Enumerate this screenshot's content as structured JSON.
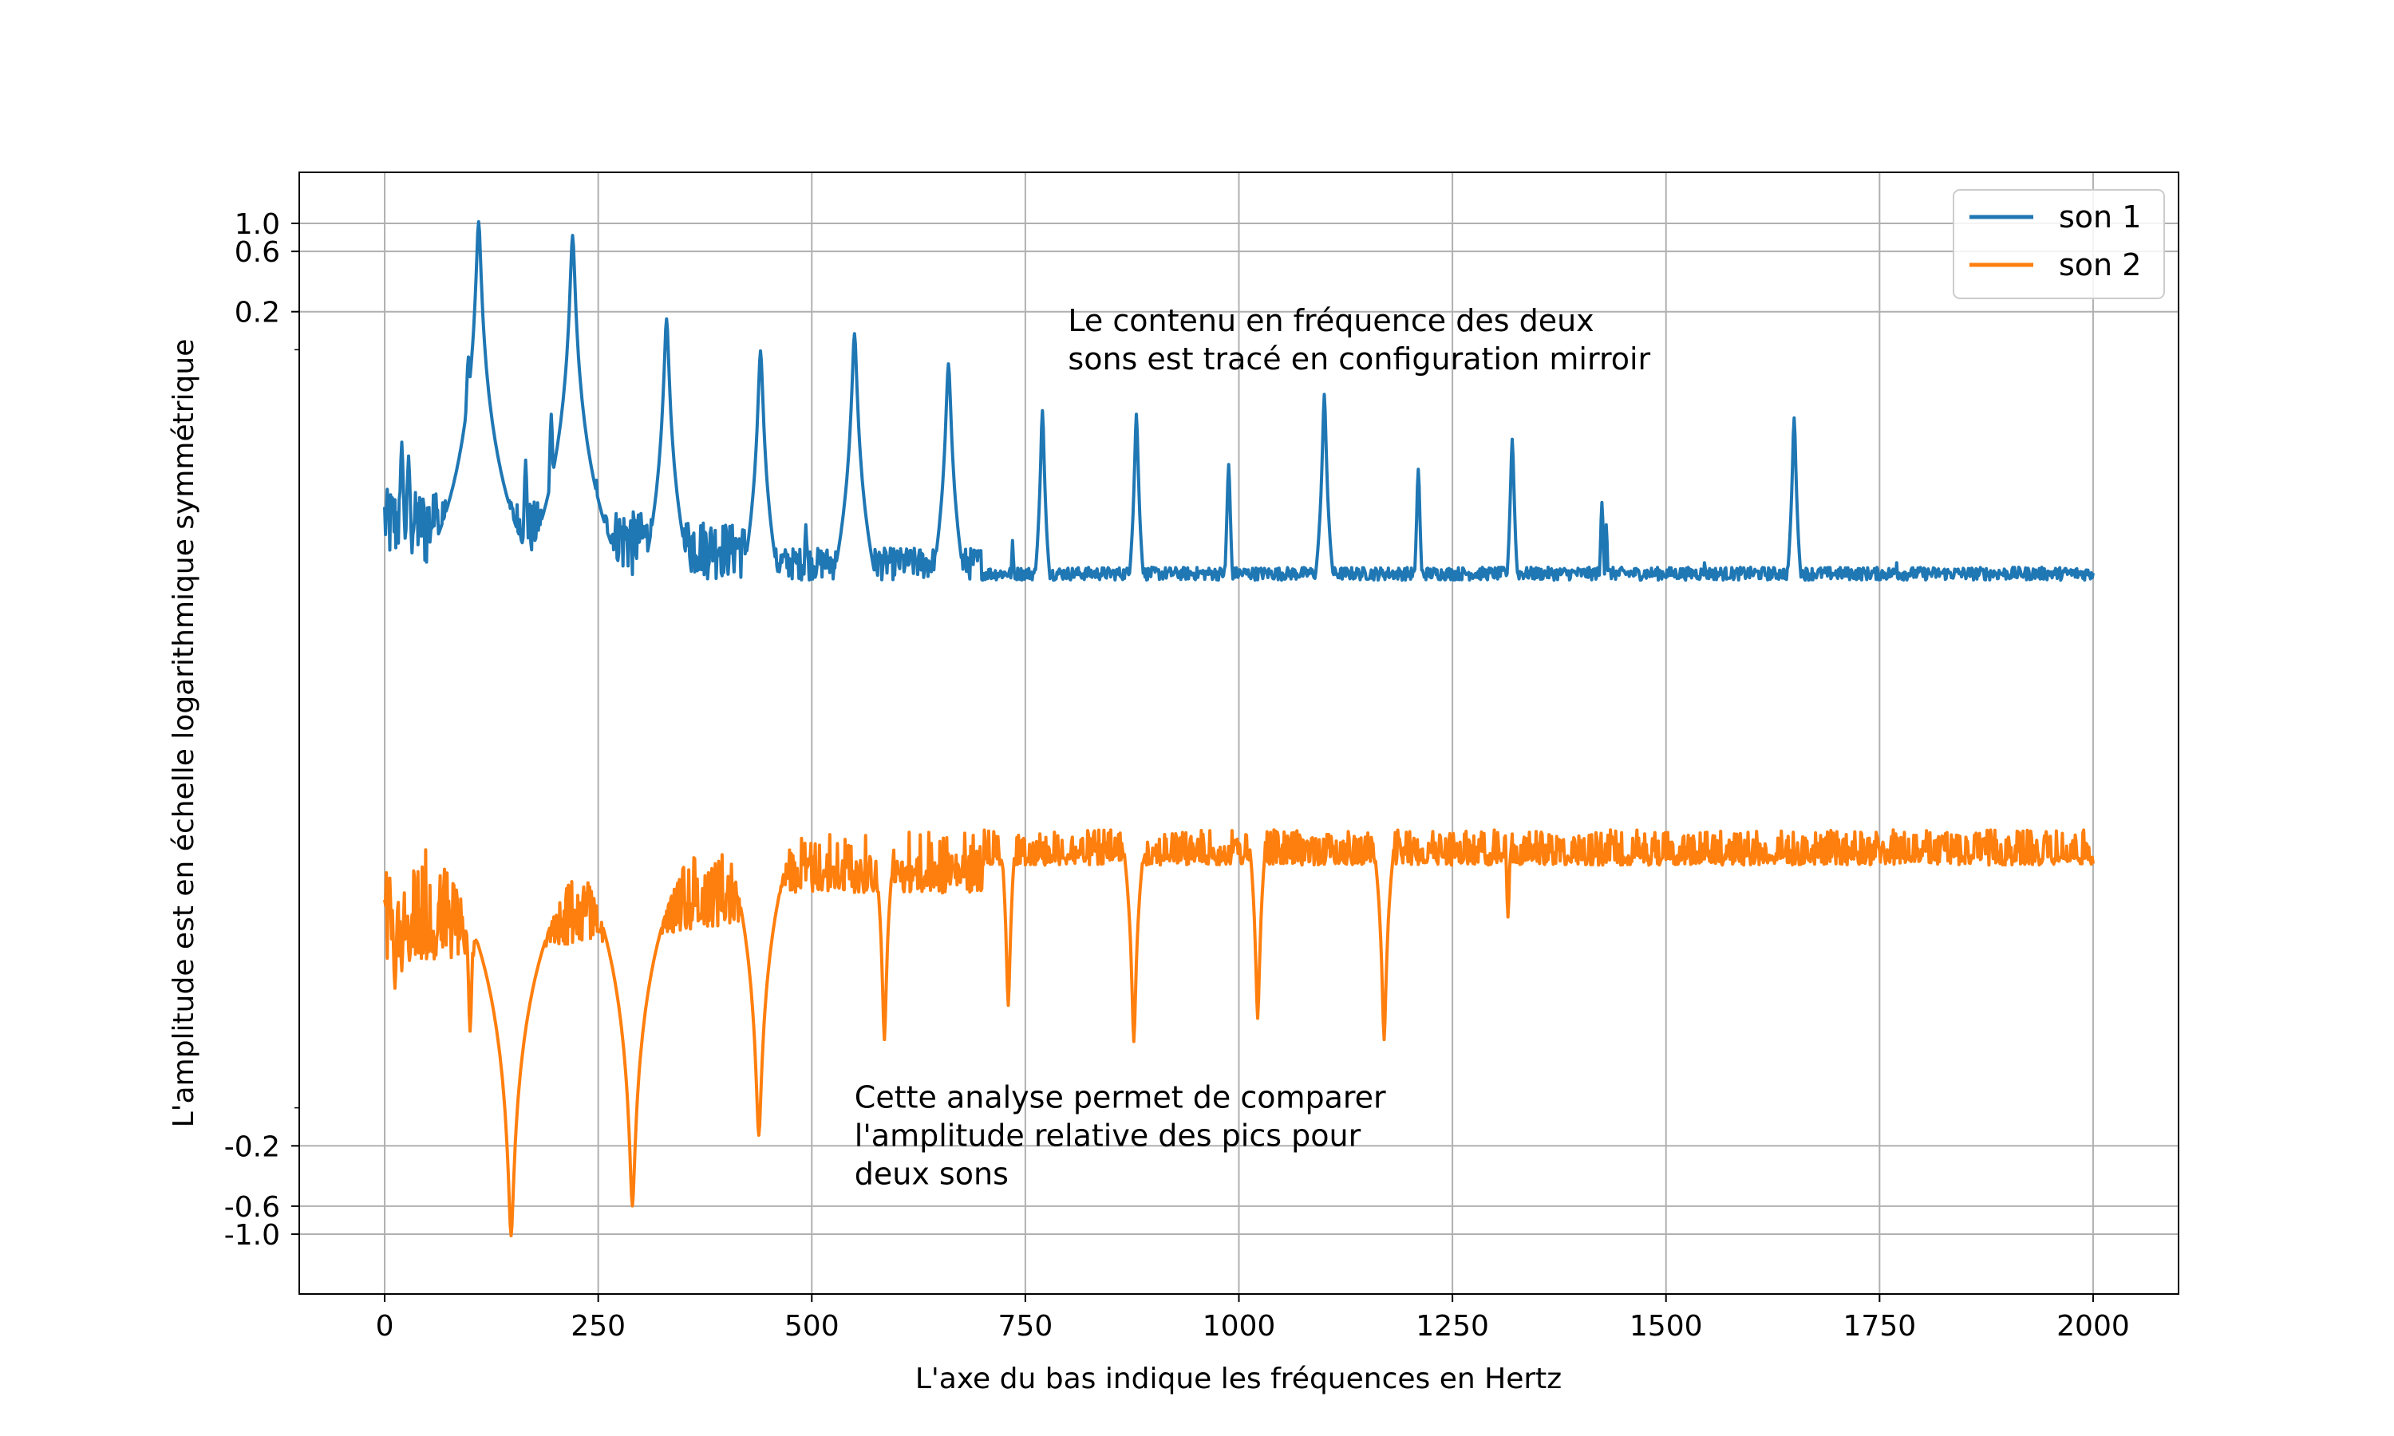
{
  "chart_data": {
    "type": "line",
    "title": "",
    "xlabel": "L'axe du bas indique les fréquences en Hertz",
    "ylabel": "L'amplitude est en échelle logarithmique symmétrique",
    "xlim": [
      -100,
      2100
    ],
    "ylim": [
      -1.0,
      1.0
    ],
    "y_scale": "symlog",
    "grid": true,
    "legend_position": "top-right",
    "x_ticks": [
      0,
      250,
      500,
      750,
      1000,
      1250,
      1500,
      1750,
      2000
    ],
    "x_tick_labels": [
      "0",
      "250",
      "500",
      "750",
      "1000",
      "1250",
      "1500",
      "1750",
      "2000"
    ],
    "y_ticks": [
      1.0,
      0.6,
      0.2,
      -0.2,
      -0.6,
      -1.0
    ],
    "y_tick_labels": [
      "1.0",
      "0.6",
      "0.2",
      "-0.2",
      "-0.6",
      "-1.0"
    ],
    "annotations": [
      {
        "lines": [
          "Le contenu en fréquence des deux",
          "sons est tracé en configuration mirroir"
        ],
        "x": 800,
        "y": 0.14
      },
      {
        "lines": [
          "Cette analyse permet de comparer",
          "l'amplitude relative des pics pour",
          "deux sons"
        ],
        "x": 550,
        "y": -0.1
      }
    ],
    "series": [
      {
        "name": "son 1",
        "color": "#1f77b4",
        "baseline": 0.0015,
        "peaks": [
          {
            "x": 20,
            "y": 0.018
          },
          {
            "x": 28,
            "y": 0.014
          },
          {
            "x": 60,
            "y": 0.007
          },
          {
            "x": 98,
            "y": 0.085
          },
          {
            "x": 110,
            "y": 1.0
          },
          {
            "x": 148,
            "y": 0.006
          },
          {
            "x": 165,
            "y": 0.013
          },
          {
            "x": 195,
            "y": 0.03
          },
          {
            "x": 220,
            "y": 0.78
          },
          {
            "x": 248,
            "y": 0.009
          },
          {
            "x": 330,
            "y": 0.17
          },
          {
            "x": 440,
            "y": 0.095
          },
          {
            "x": 493,
            "y": 0.004
          },
          {
            "x": 550,
            "y": 0.13
          },
          {
            "x": 660,
            "y": 0.075
          },
          {
            "x": 735,
            "y": 0.003
          },
          {
            "x": 770,
            "y": 0.032
          },
          {
            "x": 880,
            "y": 0.03
          },
          {
            "x": 988,
            "y": 0.012
          },
          {
            "x": 1100,
            "y": 0.043
          },
          {
            "x": 1210,
            "y": 0.011
          },
          {
            "x": 1320,
            "y": 0.019
          },
          {
            "x": 1425,
            "y": 0.006
          },
          {
            "x": 1430,
            "y": 0.004
          },
          {
            "x": 1545,
            "y": 0.002
          },
          {
            "x": 1650,
            "y": 0.028
          },
          {
            "x": 1770,
            "y": 0.002
          },
          {
            "x": 1870,
            "y": 0.0012
          },
          {
            "x": 1995,
            "y": 0.0009
          }
        ]
      },
      {
        "name": "son 2",
        "color": "#ff7f0e",
        "baseline": -0.0008,
        "peaks": [
          {
            "x": 12,
            "y": -0.011
          },
          {
            "x": 20,
            "y": -0.008
          },
          {
            "x": 60,
            "y": -0.006
          },
          {
            "x": 100,
            "y": -0.024
          },
          {
            "x": 148,
            "y": -1.0
          },
          {
            "x": 200,
            "y": -0.004
          },
          {
            "x": 290,
            "y": -0.58
          },
          {
            "x": 438,
            "y": -0.16
          },
          {
            "x": 585,
            "y": -0.028
          },
          {
            "x": 730,
            "y": -0.015
          },
          {
            "x": 877,
            "y": -0.029
          },
          {
            "x": 1022,
            "y": -0.019
          },
          {
            "x": 1170,
            "y": -0.028
          },
          {
            "x": 1315,
            "y": -0.003
          },
          {
            "x": 1462,
            "y": -0.0007
          },
          {
            "x": 1610,
            "y": -0.0006
          },
          {
            "x": 1758,
            "y": -0.0008
          },
          {
            "x": 1905,
            "y": -0.0011
          }
        ]
      }
    ]
  }
}
